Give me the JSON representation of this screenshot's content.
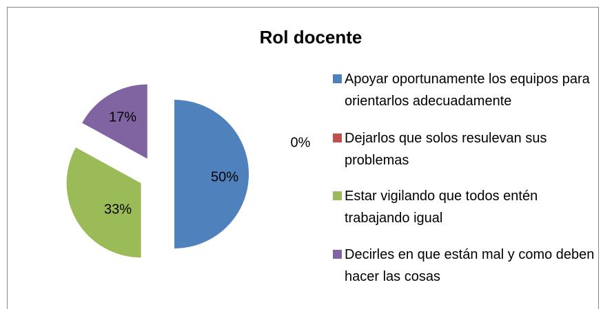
{
  "chart_data": {
    "type": "pie",
    "title": "Rol docente",
    "categories": [
      "Apoyar oportunamente los equipos para orientarlos adecuadamente",
      "Dejarlos que solos resulevan sus problemas",
      "Estar vigilando que todos entén trabajando igual",
      "Decirles en que están mal y como deben hacer las cosas"
    ],
    "values": [
      50,
      0,
      33,
      17
    ],
    "value_labels": [
      "50%",
      "0%",
      "33%",
      "17%"
    ],
    "colors": [
      "#4f81bd",
      "#c0504d",
      "#9bbb59",
      "#8064a2"
    ],
    "legend": "right"
  }
}
